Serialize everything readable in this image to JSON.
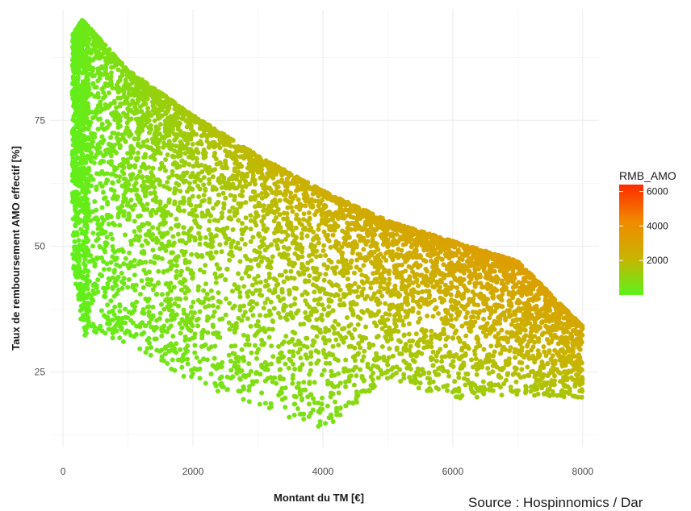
{
  "chart_data": {
    "type": "scatter",
    "title": "",
    "xlabel": "Montant du TM [€]",
    "ylabel": "Taux de remboursement AMO effectif [%]",
    "xlim": [
      -200,
      8250
    ],
    "ylim": [
      10,
      97
    ],
    "x_ticks": [
      0,
      2000,
      4000,
      6000,
      8000
    ],
    "y_ticks": [
      25,
      50,
      75
    ],
    "grid": true,
    "legend": {
      "title": "RMB_AMO",
      "position": "right",
      "ticks": [
        2000,
        4000,
        6000
      ],
      "range": [
        0,
        6400
      ],
      "colors": [
        "#5cf21b",
        "#c8b400",
        "#f08a00",
        "#ff2a00"
      ]
    },
    "color_variable": "RMB_AMO",
    "description_points": {
      "x_range": [
        150,
        8000
      ],
      "upper_envelope": [
        [
          150,
          92
        ],
        [
          300,
          95
        ],
        [
          1000,
          85
        ],
        [
          2000,
          76
        ],
        [
          3000,
          68
        ],
        [
          4000,
          61
        ],
        [
          5000,
          55
        ],
        [
          6000,
          51
        ],
        [
          7000,
          47
        ],
        [
          8000,
          34
        ]
      ],
      "lower_envelope": [
        [
          150,
          44
        ],
        [
          300,
          29
        ],
        [
          1000,
          28
        ],
        [
          2000,
          20
        ],
        [
          3000,
          15
        ],
        [
          3500,
          13
        ],
        [
          4000,
          11
        ],
        [
          5000,
          22
        ],
        [
          6000,
          18
        ],
        [
          7000,
          19
        ],
        [
          8000,
          19
        ]
      ]
    }
  },
  "source_note": "Source : Hospinnomics / Dar"
}
